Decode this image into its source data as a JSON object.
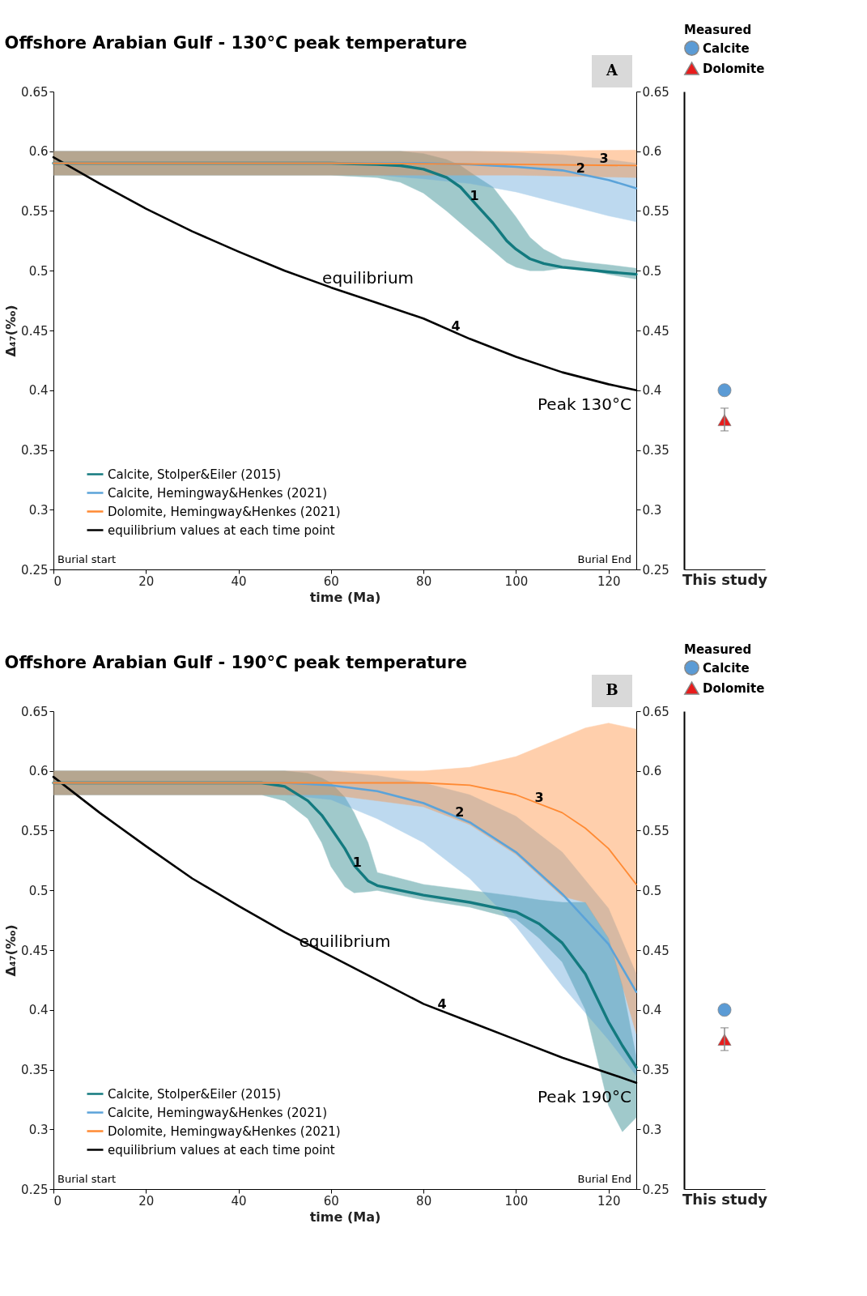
{
  "chart_data": [
    {
      "type": "line",
      "title": "Offshore Arabian Gulf - 130°C peak temperature",
      "xlabel": "time (Ma)",
      "ylabel": "Δ₄₇(‰)",
      "xlim": [
        0,
        126
      ],
      "xticks": [
        0,
        20,
        40,
        60,
        80,
        100,
        120
      ],
      "ylim": [
        0.25,
        0.65
      ],
      "yticks": [
        0.25,
        0.3,
        0.35,
        0.4,
        0.45,
        0.5,
        0.55,
        0.6,
        0.65
      ],
      "y2lim": [
        0.25,
        0.65
      ],
      "y2ticks": [
        0.25,
        0.3,
        0.35,
        0.4,
        0.45,
        0.5,
        0.55,
        0.6,
        0.65
      ],
      "legend": "bottom left",
      "grid": false,
      "series": [
        {
          "name": "Calcite, Stolper&Eiler (2015)",
          "color": "#137a7f",
          "x": [
            0,
            60,
            70,
            75,
            80,
            85,
            88,
            91,
            95,
            98,
            100,
            103,
            106,
            110,
            115,
            120,
            126
          ],
          "values": [
            0.59,
            0.59,
            0.589,
            0.588,
            0.585,
            0.578,
            0.57,
            0.557,
            0.54,
            0.525,
            0.518,
            0.51,
            0.506,
            0.503,
            0.501,
            0.499,
            0.497
          ],
          "lower": [
            0.58,
            0.58,
            0.578,
            0.574,
            0.565,
            0.55,
            0.54,
            0.53,
            0.517,
            0.507,
            0.503,
            0.5,
            0.5,
            0.502,
            0.501,
            0.497,
            0.493
          ],
          "upper": [
            0.6,
            0.6,
            0.6,
            0.6,
            0.598,
            0.593,
            0.588,
            0.58,
            0.57,
            0.555,
            0.545,
            0.528,
            0.518,
            0.51,
            0.507,
            0.505,
            0.502
          ]
        },
        {
          "name": "Calcite, Hemingway&Henkes (2021)",
          "color": "#5ba3d9",
          "x": [
            0,
            70,
            80,
            90,
            100,
            110,
            115,
            120,
            126
          ],
          "values": [
            0.59,
            0.59,
            0.59,
            0.589,
            0.587,
            0.584,
            0.58,
            0.576,
            0.569
          ],
          "lower": [
            0.58,
            0.58,
            0.577,
            0.573,
            0.566,
            0.556,
            0.551,
            0.546,
            0.541
          ],
          "upper": [
            0.6,
            0.6,
            0.6,
            0.6,
            0.599,
            0.597,
            0.595,
            0.593,
            0.59
          ]
        },
        {
          "name": "Dolomite, Hemingway&Henkes (2021)",
          "color": "#ff8a33",
          "x": [
            0,
            60,
            100,
            126
          ],
          "values": [
            0.59,
            0.59,
            0.589,
            0.588
          ],
          "lower": [
            0.58,
            0.58,
            0.58,
            0.578
          ],
          "upper": [
            0.6,
            0.6,
            0.6,
            0.601
          ]
        },
        {
          "name": "equilibrium values at each time point",
          "color": "#000000",
          "x": [
            0,
            10,
            20,
            30,
            40,
            50,
            60,
            70,
            80,
            90,
            100,
            110,
            120,
            126
          ],
          "values": [
            0.595,
            0.573,
            0.552,
            0.533,
            0.516,
            0.5,
            0.486,
            0.473,
            0.46,
            0.443,
            0.428,
            0.415,
            0.405,
            0.4
          ]
        }
      ],
      "annotations": [
        {
          "text": "1",
          "x": 91,
          "y": 0.557
        },
        {
          "text": "2",
          "x": 114,
          "y": 0.58
        },
        {
          "text": "3",
          "x": 119,
          "y": 0.588
        },
        {
          "text": "4",
          "x": 87,
          "y": 0.448
        },
        {
          "text": "equilibrium",
          "x": 68,
          "y": 0.476
        },
        {
          "text": "Peak 130°C",
          "x": 126,
          "y": 0.4
        },
        "Burial start",
        "Burial End",
        "A"
      ]
    },
    {
      "type": "scatter",
      "categories": [
        null
      ],
      "xlabel": "This study",
      "legend_title": "Measured",
      "legend": "top",
      "ylim": [
        0.25,
        0.65
      ],
      "tick_labels": false,
      "series": [
        {
          "name": "Calcite",
          "color": "#5b9bd5",
          "marker": "circle",
          "values": [
            0.4
          ]
        },
        {
          "name": "Dolomite",
          "color": "#e81c1c",
          "marker": "triangle",
          "values": [
            0.375
          ],
          "errors": [
            [
              0.366,
              0.385
            ]
          ]
        }
      ]
    },
    {
      "type": "line",
      "title": "Offshore Arabian Gulf -  190°C peak temperature",
      "xlabel": "time (Ma)",
      "ylabel": "Δ₄₇(‰)",
      "xlim": [
        0,
        126
      ],
      "xticks": [
        0,
        20,
        40,
        60,
        80,
        100,
        120
      ],
      "ylim": [
        0.25,
        0.65
      ],
      "yticks": [
        0.25,
        0.3,
        0.35,
        0.4,
        0.45,
        0.5,
        0.55,
        0.6,
        0.65
      ],
      "y2lim": [
        0.25,
        0.65
      ],
      "y2ticks": [
        0.25,
        0.3,
        0.35,
        0.4,
        0.45,
        0.5,
        0.55,
        0.6,
        0.65
      ],
      "legend": "bottom left",
      "grid": false,
      "series": [
        {
          "name": "Calcite, Stolper&Eiler (2015)",
          "color": "#137a7f",
          "x": [
            0,
            45,
            50,
            55,
            58,
            60,
            63,
            65,
            68,
            70,
            80,
            90,
            100,
            105,
            110,
            115,
            120,
            123,
            126
          ],
          "values": [
            0.59,
            0.59,
            0.587,
            0.575,
            0.563,
            0.552,
            0.535,
            0.521,
            0.508,
            0.504,
            0.496,
            0.49,
            0.482,
            0.472,
            0.456,
            0.43,
            0.39,
            0.37,
            0.352
          ],
          "lower": [
            0.58,
            0.58,
            0.575,
            0.56,
            0.54,
            0.52,
            0.503,
            0.498,
            0.499,
            0.5,
            0.492,
            0.486,
            0.476,
            0.46,
            0.44,
            0.4,
            0.32,
            0.298,
            0.31
          ],
          "upper": [
            0.6,
            0.6,
            0.6,
            0.598,
            0.594,
            0.59,
            0.578,
            0.565,
            0.54,
            0.515,
            0.505,
            0.5,
            0.495,
            0.492,
            0.49,
            0.49,
            0.46,
            0.42,
            0.36
          ]
        },
        {
          "name": "Calcite, Hemingway&Henkes (2021)",
          "color": "#5ba3d9",
          "x": [
            0,
            50,
            60,
            70,
            80,
            90,
            100,
            110,
            120,
            126
          ],
          "values": [
            0.59,
            0.59,
            0.588,
            0.583,
            0.573,
            0.557,
            0.532,
            0.497,
            0.455,
            0.415
          ],
          "lower": [
            0.58,
            0.58,
            0.576,
            0.56,
            0.54,
            0.51,
            0.47,
            0.42,
            0.375,
            0.345
          ],
          "upper": [
            0.6,
            0.6,
            0.6,
            0.596,
            0.59,
            0.58,
            0.562,
            0.532,
            0.485,
            0.43
          ]
        },
        {
          "name": "Dolomite, Hemingway&Henkes (2021)",
          "color": "#ff8a33",
          "x": [
            0,
            60,
            80,
            90,
            100,
            110,
            115,
            120,
            126
          ],
          "values": [
            0.59,
            0.59,
            0.59,
            0.588,
            0.58,
            0.565,
            0.552,
            0.535,
            0.505
          ],
          "lower": [
            0.58,
            0.58,
            0.57,
            0.555,
            0.53,
            0.495,
            0.49,
            0.46,
            0.38
          ],
          "upper": [
            0.6,
            0.6,
            0.6,
            0.603,
            0.612,
            0.628,
            0.636,
            0.64,
            0.635
          ]
        },
        {
          "name": "equilibrium values at each time point",
          "color": "#000000",
          "x": [
            0,
            10,
            20,
            30,
            40,
            50,
            60,
            70,
            80,
            90,
            100,
            110,
            120,
            126
          ],
          "values": [
            0.595,
            0.565,
            0.537,
            0.51,
            0.487,
            0.465,
            0.445,
            0.425,
            0.405,
            0.39,
            0.375,
            0.36,
            0.347,
            0.339
          ]
        }
      ],
      "annotations": [
        {
          "text": "1",
          "x": 65.7,
          "y": 0.518
        },
        {
          "text": "2",
          "x": 87.8,
          "y": 0.56
        },
        {
          "text": "3",
          "x": 105,
          "y": 0.572
        },
        {
          "text": "4",
          "x": 84,
          "y": 0.399
        },
        {
          "text": "equilibrium",
          "x": 63,
          "y": 0.439
        },
        {
          "text": "Peak 190°C",
          "x": 126,
          "y": 0.339
        },
        "Burial start",
        "Burial End",
        "B"
      ]
    },
    {
      "type": "scatter",
      "categories": [
        null
      ],
      "xlabel": "This study",
      "legend_title": "Measured",
      "legend": "top",
      "ylim": [
        0.25,
        0.65
      ],
      "tick_labels": false,
      "series": [
        {
          "name": "Calcite",
          "color": "#5b9bd5",
          "marker": "circle",
          "values": [
            0.4
          ]
        },
        {
          "name": "Dolomite",
          "color": "#e81c1c",
          "marker": "triangle",
          "values": [
            0.375
          ],
          "errors": [
            [
              0.366,
              0.385
            ]
          ]
        }
      ]
    }
  ]
}
